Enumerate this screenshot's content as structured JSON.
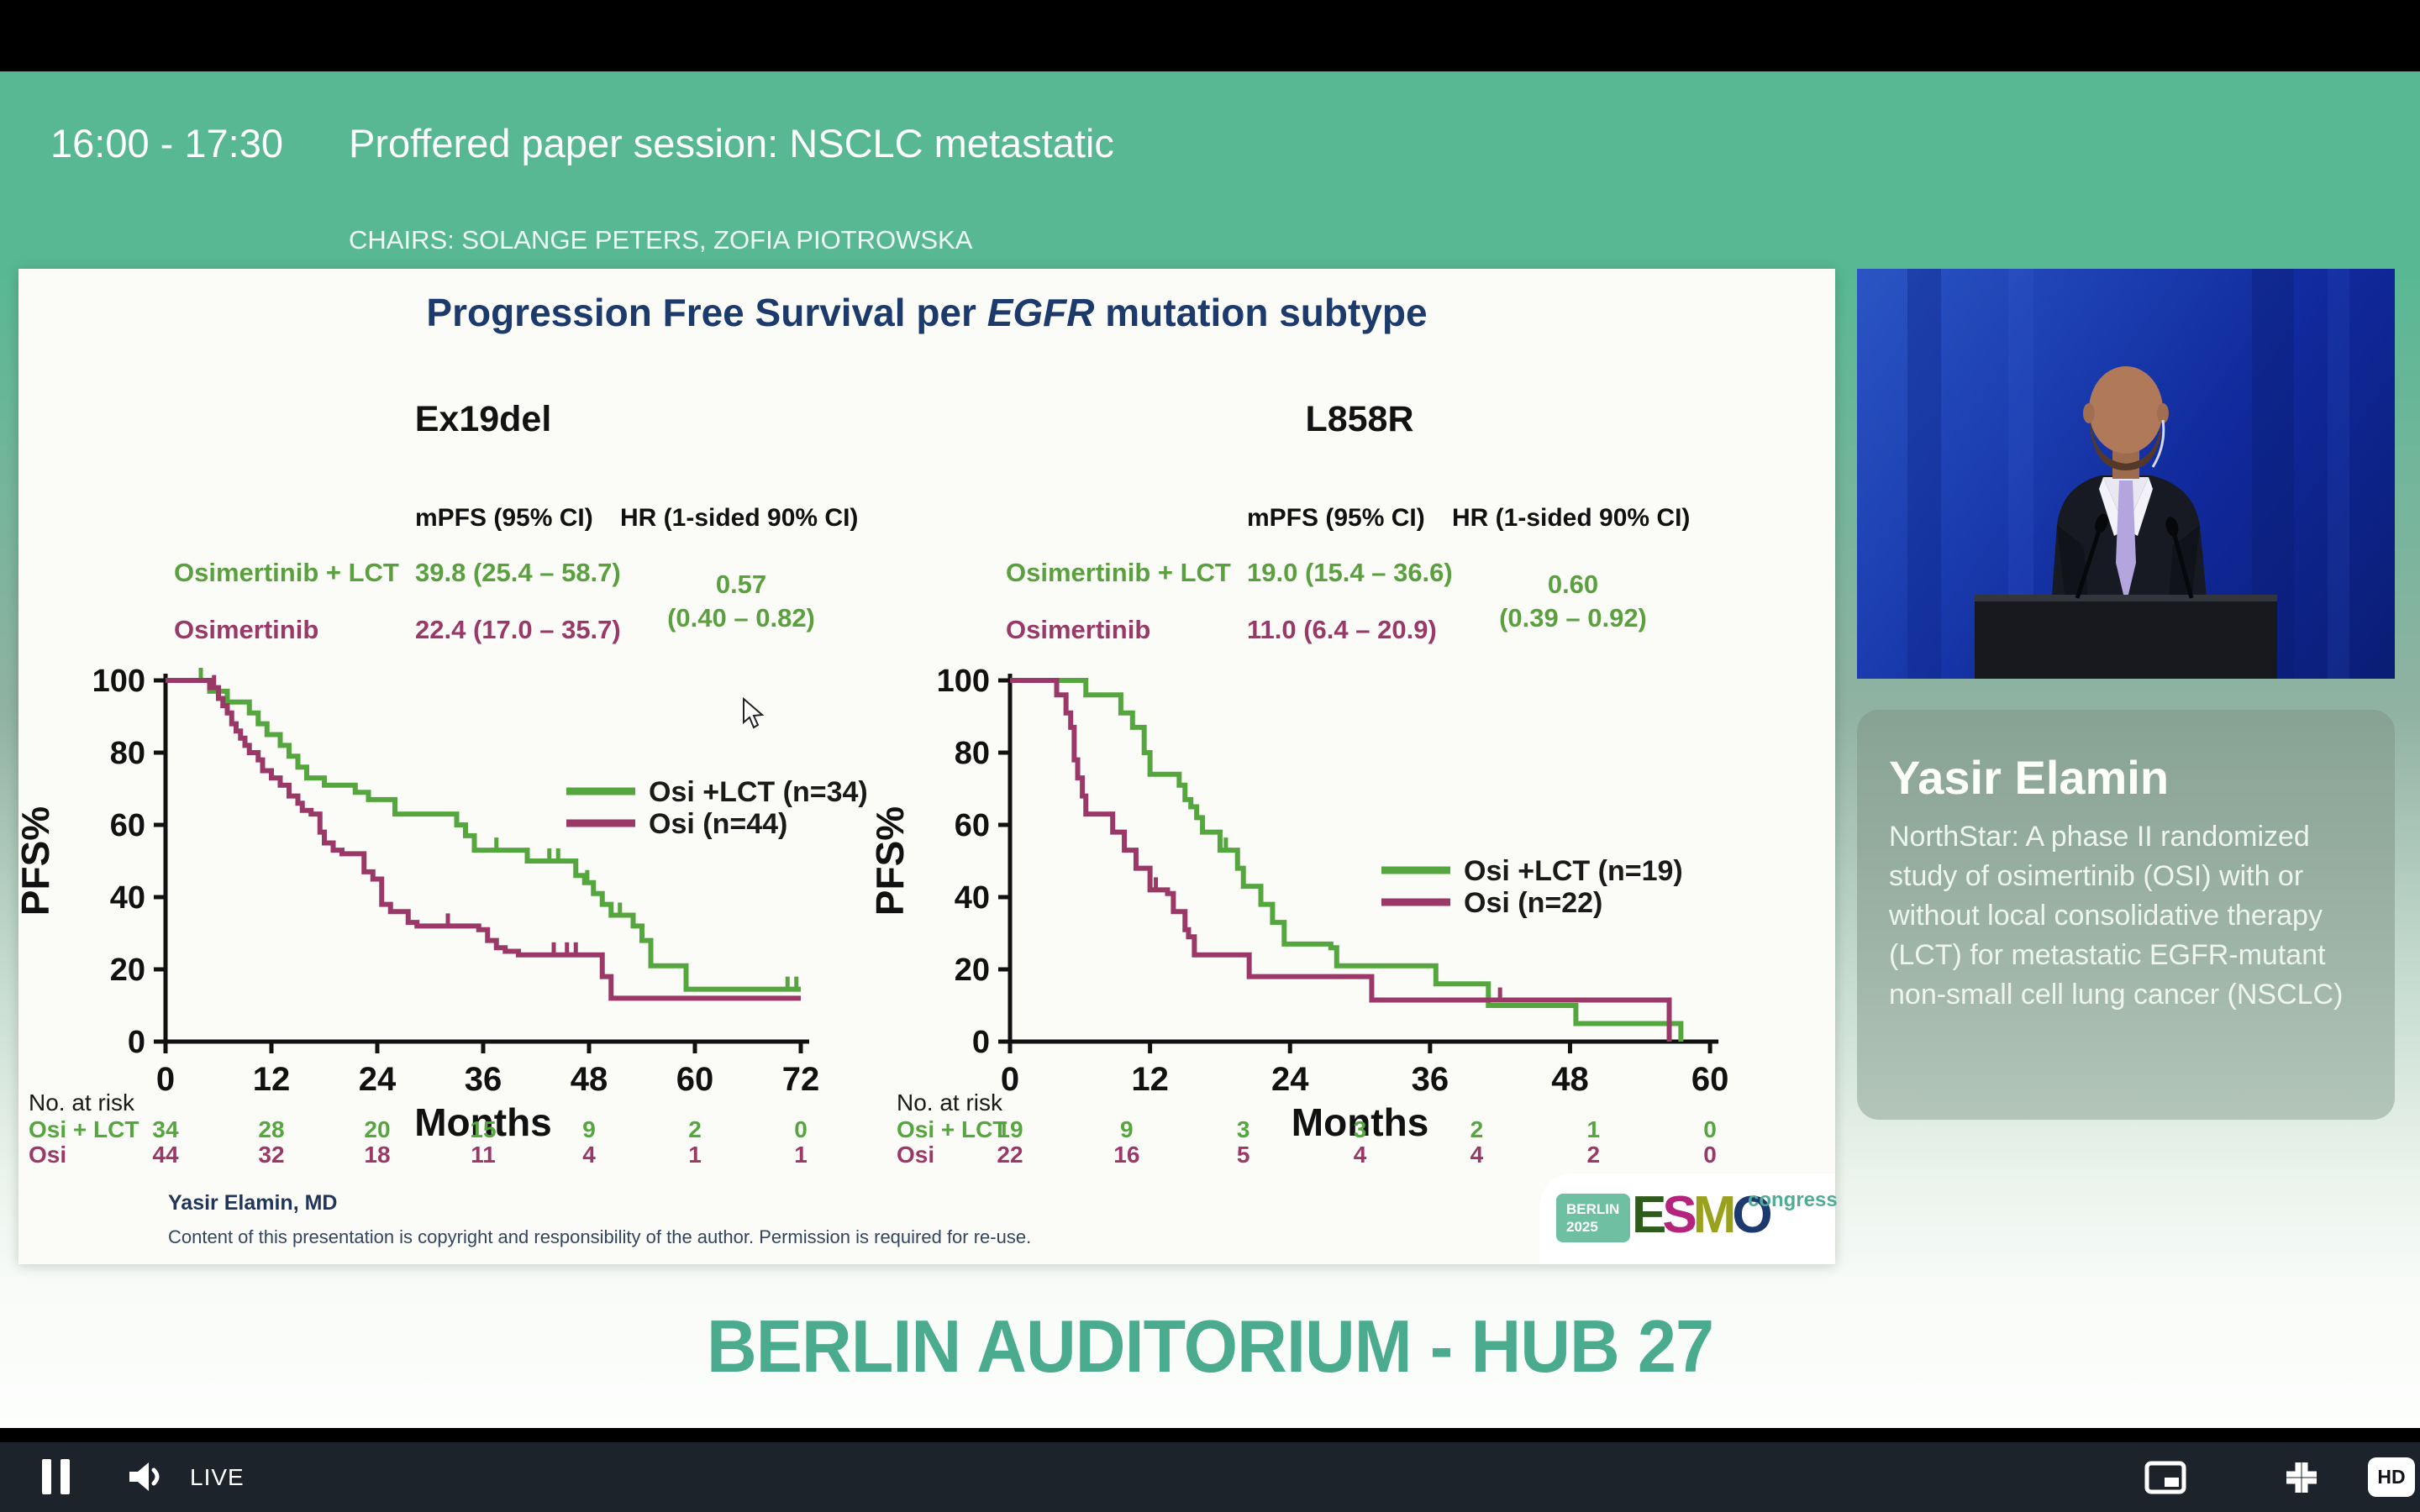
{
  "header": {
    "time": "16:00 - 17:30",
    "title": "Proffered paper session: NSCLC metastatic",
    "chairs": "CHAIRS: SOLANGE PETERS, ZOFIA PIOTROWSKA"
  },
  "banner": {
    "location": "BERLIN AUDITORIUM - HUB 27"
  },
  "speaker": {
    "name": "Yasir Elamin",
    "abstract": "NorthStar: A phase II randomized study of osimertinib (OSI) with or without local consolidative therapy (LCT) for metastatic EGFR-mutant non-small cell lung cancer (NSCLC)"
  },
  "slide": {
    "title_prefix": "Progression Free Survival per ",
    "title_gene": "EGFR",
    "title_suffix": " mutation subtype",
    "footer_author": "Yasir Elamin, MD",
    "copyright": "Content of this presentation is copyright and responsibility of the author. Permission is required for re-use.",
    "logo": {
      "city": "BERLIN",
      "year": "2025",
      "letters": [
        "E",
        "S",
        "M",
        "O"
      ],
      "letter_colors": [
        "#2f5b1d",
        "#b5237c",
        "#9aa11c",
        "#1d3a70"
      ],
      "congress": "congress"
    }
  },
  "player": {
    "status": "LIVE",
    "hd_label": "HD"
  },
  "colors": {
    "header_green": "#57b893",
    "banner_green": "#4bab8e",
    "title_navy": "#1d3a6d",
    "osi_lct_green": "#55a63f",
    "osi_maroon": "#9a3967",
    "controls_bg": "#1d232b",
    "slide_bg": "#fbfcf7"
  },
  "chart_data": [
    {
      "type": "line",
      "subtype": "kaplan-meier-step",
      "title": "Ex19del",
      "xlabel": "Months",
      "ylabel": "PFS%",
      "xlim": [
        0,
        72
      ],
      "ylim": [
        0,
        100
      ],
      "xticks": [
        0,
        12,
        24,
        36,
        48,
        60,
        72
      ],
      "yticks": [
        0,
        20,
        40,
        60,
        80,
        100
      ],
      "legend_position": "right-upper-middle",
      "stats": {
        "header_mpfs": "mPFS (95% CI)",
        "header_hr": "HR (1-sided 90% CI)",
        "rows": [
          {
            "label": "Osimertinib + LCT",
            "mpfs": "39.8 (25.4 – 58.7)"
          },
          {
            "label": "Osimertinib",
            "mpfs": "22.4 (17.0 – 35.7)"
          }
        ],
        "hr_value": "0.57",
        "hr_ci": "(0.40 – 0.82)"
      },
      "series": [
        {
          "name": "Osi +LCT (n=34)",
          "color": "#55a63f",
          "steps": [
            [
              0,
              100
            ],
            [
              5,
              97
            ],
            [
              7,
              94
            ],
            [
              9.5,
              91
            ],
            [
              10.5,
              88
            ],
            [
              11.5,
              85
            ],
            [
              13,
              82
            ],
            [
              14,
              79
            ],
            [
              15,
              76
            ],
            [
              16,
              73
            ],
            [
              18,
              71
            ],
            [
              21.5,
              69
            ],
            [
              23,
              67
            ],
            [
              26,
              63
            ],
            [
              33,
              60
            ],
            [
              34,
              57
            ],
            [
              35,
              53
            ],
            [
              41,
              50
            ],
            [
              46.5,
              46
            ],
            [
              47.5,
              44
            ],
            [
              48.5,
              41
            ],
            [
              49.5,
              38
            ],
            [
              50.5,
              35
            ],
            [
              53,
              32
            ],
            [
              54,
              28
            ],
            [
              55,
              21
            ],
            [
              59,
              14.5
            ],
            [
              72,
              14.5
            ]
          ],
          "censors": [
            [
              4,
              100
            ],
            [
              37.5,
              53
            ],
            [
              43.5,
              50
            ],
            [
              44.5,
              50
            ],
            [
              47.8,
              44
            ],
            [
              51.5,
              35
            ],
            [
              70.5,
              14.5
            ],
            [
              71.5,
              14.5
            ]
          ]
        },
        {
          "name": "Osi (n=44)",
          "color": "#9a3967",
          "steps": [
            [
              0,
              100
            ],
            [
              5,
              98
            ],
            [
              6,
              95
            ],
            [
              6.5,
              93
            ],
            [
              7,
              91
            ],
            [
              7.5,
              88
            ],
            [
              8,
              86
            ],
            [
              8.5,
              84
            ],
            [
              9,
              82
            ],
            [
              9.5,
              80
            ],
            [
              10.5,
              78
            ],
            [
              11,
              75
            ],
            [
              12,
              73
            ],
            [
              13,
              71
            ],
            [
              14,
              68
            ],
            [
              15,
              66
            ],
            [
              15.5,
              64
            ],
            [
              16.5,
              63
            ],
            [
              17.5,
              58
            ],
            [
              18,
              55
            ],
            [
              19,
              53
            ],
            [
              20,
              52
            ],
            [
              22.5,
              47
            ],
            [
              23.5,
              45
            ],
            [
              24.5,
              38
            ],
            [
              25.5,
              36
            ],
            [
              27.5,
              33
            ],
            [
              28.5,
              32
            ],
            [
              35.5,
              31
            ],
            [
              36.5,
              28
            ],
            [
              37.5,
              26
            ],
            [
              38.5,
              25
            ],
            [
              40,
              24
            ],
            [
              49.5,
              18
            ],
            [
              50.5,
              12
            ],
            [
              72,
              12
            ]
          ],
          "censors": [
            [
              5.5,
              98
            ],
            [
              32,
              32
            ],
            [
              44,
              24
            ],
            [
              45.5,
              24
            ],
            [
              46.5,
              24
            ]
          ]
        }
      ],
      "at_risk": {
        "label": "No. at risk",
        "months": [
          0,
          12,
          24,
          36,
          48,
          60,
          72
        ],
        "rows": [
          {
            "label": "Osi + LCT",
            "color": "#55a63f",
            "values": [
              34,
              28,
              20,
              15,
              9,
              2,
              0
            ]
          },
          {
            "label": "Osi",
            "color": "#9a3967",
            "values": [
              44,
              32,
              18,
              11,
              4,
              1,
              1
            ]
          }
        ]
      }
    },
    {
      "type": "line",
      "subtype": "kaplan-meier-step",
      "title": "L858R",
      "xlabel": "Months",
      "ylabel": "PFS%",
      "xlim": [
        0,
        60
      ],
      "ylim": [
        0,
        100
      ],
      "xticks": [
        0,
        12,
        24,
        36,
        48,
        60
      ],
      "yticks": [
        0,
        20,
        40,
        60,
        80,
        100
      ],
      "legend_position": "right-middle",
      "stats": {
        "header_mpfs": "mPFS (95% CI)",
        "header_hr": "HR (1-sided 90% CI)",
        "rows": [
          {
            "label": "Osimertinib + LCT",
            "mpfs": "19.0 (15.4 – 36.6)"
          },
          {
            "label": "Osimertinib",
            "mpfs": "11.0 (6.4 – 20.9)"
          }
        ],
        "hr_value": "0.60",
        "hr_ci": "(0.39 – 0.92)"
      },
      "series": [
        {
          "name": "Osi +LCT (n=19)",
          "color": "#55a63f",
          "steps": [
            [
              0,
              100
            ],
            [
              6.5,
              96
            ],
            [
              9.5,
              91
            ],
            [
              10.5,
              87
            ],
            [
              11.5,
              80
            ],
            [
              12,
              74
            ],
            [
              14.5,
              71
            ],
            [
              15,
              67
            ],
            [
              15.5,
              65
            ],
            [
              16,
              62
            ],
            [
              16.5,
              58
            ],
            [
              18,
              53
            ],
            [
              19.5,
              48
            ],
            [
              20,
              43
            ],
            [
              21.5,
              38
            ],
            [
              22.5,
              33
            ],
            [
              23.5,
              27
            ],
            [
              27.5,
              26
            ],
            [
              28,
              21
            ],
            [
              36.5,
              16
            ],
            [
              41,
              10
            ],
            [
              48.5,
              5
            ],
            [
              57.5,
              0
            ]
          ],
          "censors": [
            [
              18.5,
              53
            ]
          ]
        },
        {
          "name": "Osi (n=22)",
          "color": "#9a3967",
          "steps": [
            [
              0,
              100
            ],
            [
              4,
              96
            ],
            [
              4.8,
              91
            ],
            [
              5.2,
              87
            ],
            [
              5.5,
              78
            ],
            [
              5.8,
              73
            ],
            [
              6.2,
              68
            ],
            [
              6.5,
              63
            ],
            [
              8.8,
              58
            ],
            [
              9.8,
              53
            ],
            [
              10.8,
              48
            ],
            [
              12,
              42
            ],
            [
              13.5,
              41
            ],
            [
              14,
              36
            ],
            [
              15,
              31
            ],
            [
              15.3,
              29
            ],
            [
              15.8,
              24
            ],
            [
              20.5,
              18
            ],
            [
              31,
              11.5
            ],
            [
              56.5,
              11.5
            ],
            [
              56.5,
              0
            ]
          ],
          "censors": [
            [
              12.5,
              42
            ],
            [
              42,
              11.5
            ]
          ]
        }
      ],
      "at_risk": {
        "label": "No. at risk",
        "months": [
          0,
          10,
          20,
          30,
          40,
          50,
          60
        ],
        "rows": [
          {
            "label": "Osi + LCT",
            "color": "#55a63f",
            "values": [
              19,
              9,
              3,
              3,
              2,
              1,
              0
            ]
          },
          {
            "label": "Osi",
            "color": "#9a3967",
            "values": [
              22,
              16,
              5,
              4,
              4,
              2,
              0
            ]
          }
        ]
      }
    }
  ]
}
